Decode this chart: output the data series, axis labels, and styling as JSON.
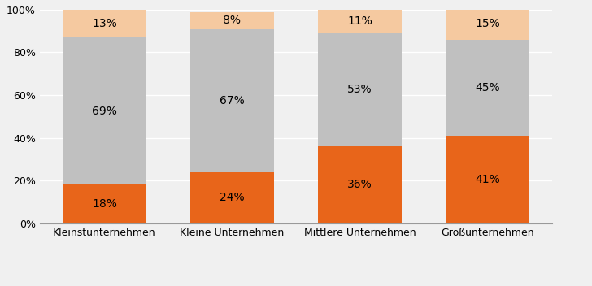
{
  "categories": [
    "Kleinstunternehmen",
    "Kleine Unternehmen",
    "Mittlere Unternehmen",
    "Großunternehmen"
  ],
  "series": {
    "Wir investieren eher mehr": [
      18,
      24,
      36,
      41
    ],
    "Es hat keinen Einfluss": [
      69,
      67,
      53,
      45
    ],
    "Investitionen werden eher zurückgestellt": [
      13,
      8,
      11,
      15
    ]
  },
  "colors": {
    "Wir investieren eher mehr": "#E8651A",
    "Es hat keinen Einfluss": "#C0C0C0",
    "Investitionen werden eher zurückgestellt": "#F5C9A0"
  },
  "ylim": [
    0,
    100
  ],
  "yticks": [
    0,
    20,
    40,
    60,
    80,
    100
  ],
  "ytick_labels": [
    "0%",
    "20%",
    "40%",
    "60%",
    "80%",
    "100%"
  ],
  "bar_width": 0.65,
  "label_fontsize": 10,
  "legend_fontsize": 9,
  "tick_fontsize": 9,
  "background_color": "#F0F0F0",
  "plot_bg_color": "#F0F0F0",
  "grid_color": "#FFFFFF"
}
